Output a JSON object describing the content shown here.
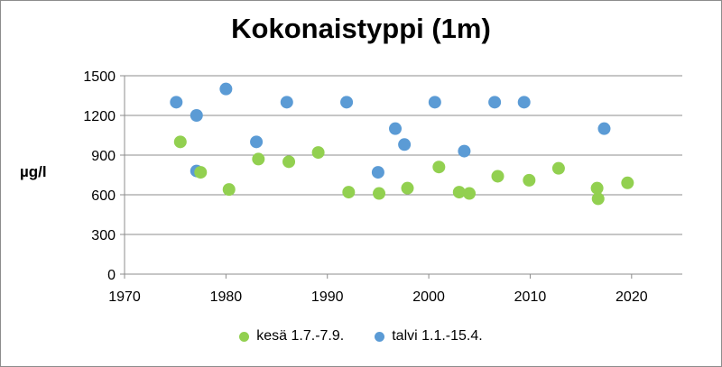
{
  "chart_data": {
    "type": "scatter",
    "title": "Kokonaistyppi (1m)",
    "xlabel": "",
    "ylabel": "µg/l",
    "xlim": [
      1970,
      2025
    ],
    "ylim": [
      0,
      1500
    ],
    "xticks": [
      1970,
      1980,
      1990,
      2000,
      2010,
      2020
    ],
    "yticks": [
      0,
      300,
      600,
      900,
      1200,
      1500
    ],
    "grid": "horizontal",
    "legend_position": "bottom",
    "series": [
      {
        "name": "kesä 1.7.-7.9.",
        "color": "#92d050",
        "points": [
          {
            "x": 1975.5,
            "y": 1000
          },
          {
            "x": 1977.5,
            "y": 770
          },
          {
            "x": 1980.3,
            "y": 640
          },
          {
            "x": 1983.2,
            "y": 870
          },
          {
            "x": 1986.2,
            "y": 850
          },
          {
            "x": 1989.1,
            "y": 920
          },
          {
            "x": 1992.1,
            "y": 620
          },
          {
            "x": 1995.1,
            "y": 610
          },
          {
            "x": 1997.9,
            "y": 650
          },
          {
            "x": 2001.0,
            "y": 810
          },
          {
            "x": 2003.0,
            "y": 620
          },
          {
            "x": 2004.0,
            "y": 610
          },
          {
            "x": 2006.8,
            "y": 740
          },
          {
            "x": 2009.9,
            "y": 710
          },
          {
            "x": 2012.8,
            "y": 800
          },
          {
            "x": 2016.6,
            "y": 650
          },
          {
            "x": 2016.7,
            "y": 570
          },
          {
            "x": 2019.6,
            "y": 690
          }
        ]
      },
      {
        "name": "talvi 1.1.-15.4.",
        "color": "#5b9bd5",
        "points": [
          {
            "x": 1975.1,
            "y": 1300
          },
          {
            "x": 1977.1,
            "y": 1200
          },
          {
            "x": 1977.1,
            "y": 780
          },
          {
            "x": 1980.0,
            "y": 1400
          },
          {
            "x": 1983.0,
            "y": 1000
          },
          {
            "x": 1986.0,
            "y": 1300
          },
          {
            "x": 1991.9,
            "y": 1300
          },
          {
            "x": 1995.0,
            "y": 770
          },
          {
            "x": 1996.7,
            "y": 1100
          },
          {
            "x": 1997.6,
            "y": 980
          },
          {
            "x": 2000.6,
            "y": 1300
          },
          {
            "x": 2003.5,
            "y": 930
          },
          {
            "x": 2006.5,
            "y": 1300
          },
          {
            "x": 2009.4,
            "y": 1300
          },
          {
            "x": 2017.3,
            "y": 1100
          }
        ]
      }
    ]
  }
}
